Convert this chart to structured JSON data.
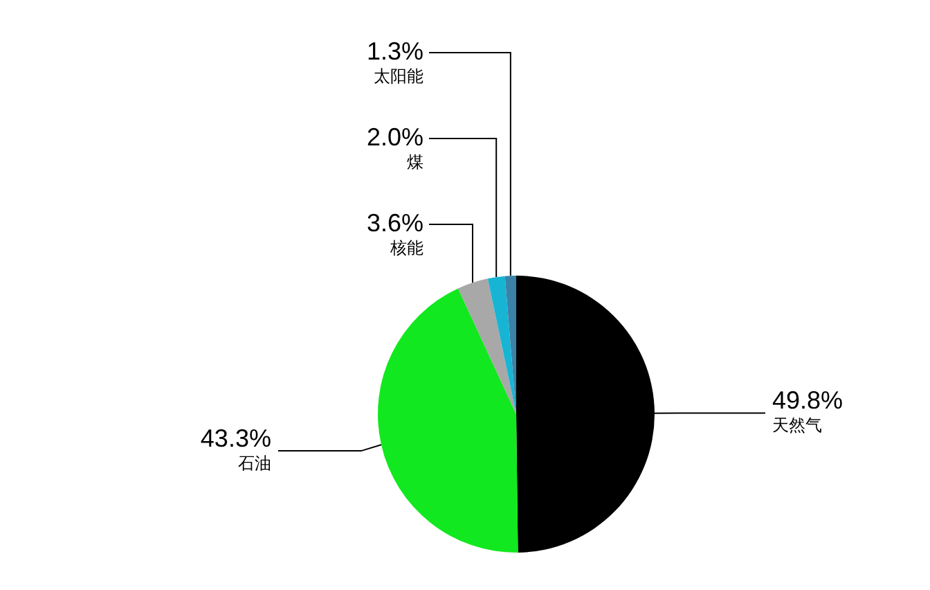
{
  "chart_data": {
    "type": "pie",
    "categories": [
      "天然气",
      "石油",
      "核能",
      "煤",
      "太阳能"
    ],
    "values": [
      49.8,
      43.3,
      3.6,
      2.0,
      1.3
    ],
    "colors": [
      "#000000",
      "#12e81f",
      "#a8a8a8",
      "#18b4d4",
      "#3a82a8"
    ],
    "value_labels": [
      "49.8%",
      "43.3%",
      "3.6%",
      "2.0%",
      "1.3%"
    ],
    "legend": false
  }
}
